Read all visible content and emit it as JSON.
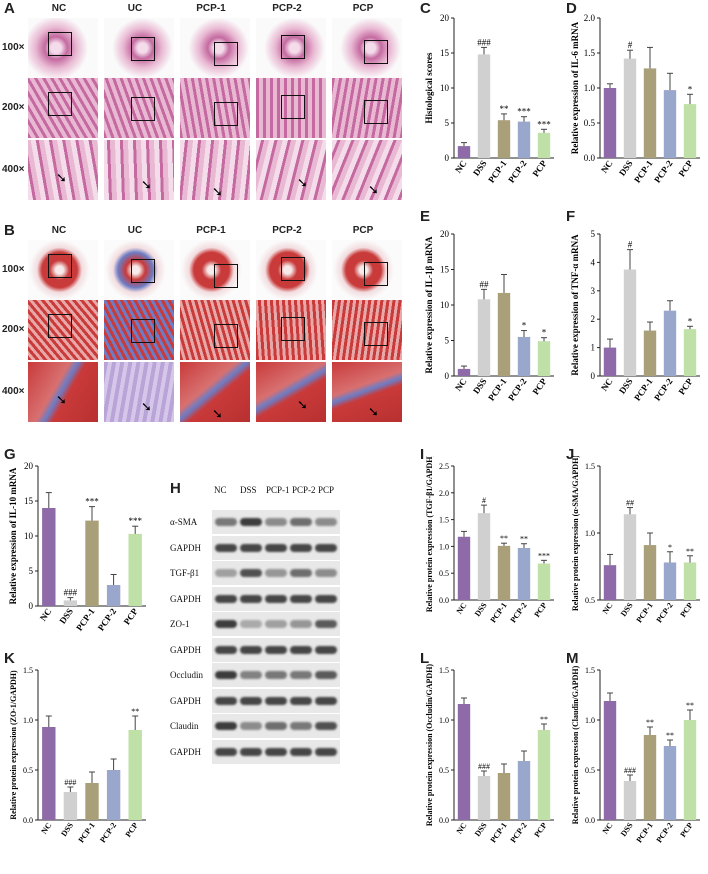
{
  "panel_letters": {
    "A": "A",
    "B": "B",
    "C": "C",
    "D": "D",
    "E": "E",
    "F": "F",
    "G": "G",
    "H": "H",
    "I": "I",
    "J": "J",
    "K": "K",
    "L": "L",
    "M": "M"
  },
  "histology": {
    "columns": [
      "NC",
      "UC",
      "PCP-1",
      "PCP-2",
      "PCP"
    ],
    "rows": [
      "100×",
      "200×",
      "400×"
    ],
    "he_colors": {
      "bg": "#e9b9d3",
      "tissue": "#c46aa0",
      "light": "#f4dceb"
    },
    "masson_colors": {
      "bg": "#f2dcdf",
      "tissue": "#c93a3a",
      "blue": "#6d7cc4"
    }
  },
  "western_blot": {
    "lanes": [
      "NC",
      "DSS",
      "PCP-1",
      "PCP-2",
      "PCP"
    ],
    "bands": [
      "α-SMA",
      "GAPDH",
      "TGF-β1",
      "GAPDH",
      "ZO-1",
      "GAPDH",
      "Occludin",
      "GAPDH",
      "Claudin",
      "GAPDH"
    ]
  },
  "chart_data": [
    {
      "id": "C",
      "type": "bar",
      "categories": [
        "NC",
        "DSS",
        "PCP-1",
        "PCP-2",
        "PCP"
      ],
      "values": [
        1.7,
        14.8,
        5.4,
        5.2,
        3.6
      ],
      "errors": [
        0.5,
        1.0,
        0.9,
        0.7,
        0.5
      ],
      "sig": [
        "",
        "###",
        "**",
        "***",
        "***"
      ],
      "ylabel": "Histological scores",
      "ylim": [
        0,
        20
      ],
      "yticks": [
        "0",
        "5",
        "10",
        "15",
        "20"
      ]
    },
    {
      "id": "D",
      "type": "bar",
      "categories": [
        "NC",
        "DSS",
        "PCP-1",
        "PCP-2",
        "PCP"
      ],
      "values": [
        1.0,
        1.42,
        1.28,
        0.97,
        0.77
      ],
      "errors": [
        0.06,
        0.12,
        0.3,
        0.24,
        0.14
      ],
      "sig": [
        "",
        "#",
        "",
        "",
        "*"
      ],
      "ylabel": "Relative expression of IL-6 mRNA",
      "ylim": [
        0,
        2.0
      ],
      "yticks": [
        "0.0",
        "0.5",
        "1.0",
        "1.5",
        "2.0"
      ]
    },
    {
      "id": "E",
      "type": "bar",
      "categories": [
        "NC",
        "DSS",
        "PCP-1",
        "PCP-2",
        "PCP"
      ],
      "values": [
        1.0,
        10.8,
        11.7,
        5.5,
        4.9
      ],
      "errors": [
        0.4,
        1.4,
        2.6,
        0.9,
        0.5
      ],
      "sig": [
        "",
        "##",
        "",
        "*",
        "*"
      ],
      "ylabel": "Relative expression of IL-1β mRNA",
      "ylim": [
        0,
        20
      ],
      "yticks": [
        "0",
        "5",
        "10",
        "15",
        "20"
      ]
    },
    {
      "id": "F",
      "type": "bar",
      "categories": [
        "NC",
        "DSS",
        "PCP-1",
        "PCP-2",
        "PCP"
      ],
      "values": [
        1.0,
        3.75,
        1.6,
        2.3,
        1.65
      ],
      "errors": [
        0.3,
        0.7,
        0.3,
        0.35,
        0.1
      ],
      "sig": [
        "",
        "#",
        "",
        "",
        "*"
      ],
      "ylabel": "Relative expression of TNF-α mRNA",
      "ylim": [
        0,
        5
      ],
      "yticks": [
        "0",
        "1",
        "2",
        "3",
        "4",
        "5"
      ]
    },
    {
      "id": "G",
      "type": "bar",
      "categories": [
        "NC",
        "DSS",
        "PCP-1",
        "PCP-2",
        "PCP"
      ],
      "values": [
        14.0,
        0.8,
        12.2,
        3.0,
        10.3
      ],
      "errors": [
        2.2,
        0.4,
        2.0,
        1.5,
        1.1
      ],
      "sig": [
        "",
        "###",
        "***",
        "",
        "***"
      ],
      "ylabel": "Relative expression of IL-10 mRNA",
      "ylim": [
        0,
        20
      ],
      "yticks": [
        "0",
        "5",
        "10",
        "15",
        "20"
      ]
    },
    {
      "id": "I",
      "type": "bar",
      "categories": [
        "NC",
        "DSS",
        "PCP-1",
        "PCP-2",
        "PCP"
      ],
      "values": [
        1.18,
        1.62,
        1.01,
        0.97,
        0.68
      ],
      "errors": [
        0.1,
        0.15,
        0.05,
        0.08,
        0.06
      ],
      "sig": [
        "",
        "#",
        "**",
        "**",
        "***"
      ],
      "ylabel": "Relative protein expression (TGF-β1/GAPDH)",
      "ylim": [
        0,
        2.5
      ],
      "yticks": [
        "0.0",
        "0.5",
        "1.0",
        "1.5",
        "2.0",
        "2.5"
      ]
    },
    {
      "id": "J",
      "type": "bar",
      "categories": [
        "NC",
        "DSS",
        "PCP-1",
        "PCP-2",
        "PCP"
      ],
      "values": [
        0.76,
        1.14,
        0.91,
        0.78,
        0.78
      ],
      "errors": [
        0.08,
        0.05,
        0.09,
        0.08,
        0.05
      ],
      "sig": [
        "",
        "##",
        "",
        "*",
        "**"
      ],
      "ylabel": "Relative protein expression (α-SMA/GAPDH)",
      "ylim": [
        0.5,
        1.5
      ],
      "yticks": [
        "0.5",
        "1.0",
        "1.5"
      ]
    },
    {
      "id": "K",
      "type": "bar",
      "categories": [
        "NC",
        "DSS",
        "PCP-1",
        "PCP-2",
        "PCP"
      ],
      "values": [
        0.93,
        0.28,
        0.37,
        0.5,
        0.9
      ],
      "errors": [
        0.11,
        0.05,
        0.11,
        0.11,
        0.14
      ],
      "sig": [
        "",
        "###",
        "",
        "",
        "**"
      ],
      "ylabel": "Relative protein expression (ZO-1/GAPDH)",
      "ylim": [
        0,
        1.5
      ],
      "yticks": [
        "0.0",
        "0.5",
        "1.0",
        "1.5"
      ]
    },
    {
      "id": "L",
      "type": "bar",
      "categories": [
        "NC",
        "DSS",
        "PCP-1",
        "PCP-2",
        "PCP"
      ],
      "values": [
        1.16,
        0.44,
        0.47,
        0.59,
        0.9
      ],
      "errors": [
        0.06,
        0.05,
        0.09,
        0.1,
        0.06
      ],
      "sig": [
        "",
        "###",
        "",
        "",
        "**"
      ],
      "ylabel": "Relative protein expression (Occludin/GAPDH)",
      "ylim": [
        0,
        1.5
      ],
      "yticks": [
        "0.0",
        "0.5",
        "1.0",
        "1.5"
      ]
    },
    {
      "id": "M",
      "type": "bar",
      "categories": [
        "NC",
        "DSS",
        "PCP-1",
        "PCP-2",
        "PCP"
      ],
      "values": [
        1.19,
        0.39,
        0.85,
        0.74,
        1.0
      ],
      "errors": [
        0.08,
        0.06,
        0.08,
        0.06,
        0.1
      ],
      "sig": [
        "",
        "###",
        "**",
        "**",
        "**"
      ],
      "ylabel": "Relative protein expression (Claudin/GAPDH)",
      "ylim": [
        0,
        1.5
      ],
      "yticks": [
        "0.0",
        "0.5",
        "1.0",
        "1.5"
      ]
    }
  ],
  "bar_colors": [
    "#8f6aa8",
    "#d0d0d0",
    "#a9a07a",
    "#9aa7cc",
    "#bfe0a6"
  ]
}
